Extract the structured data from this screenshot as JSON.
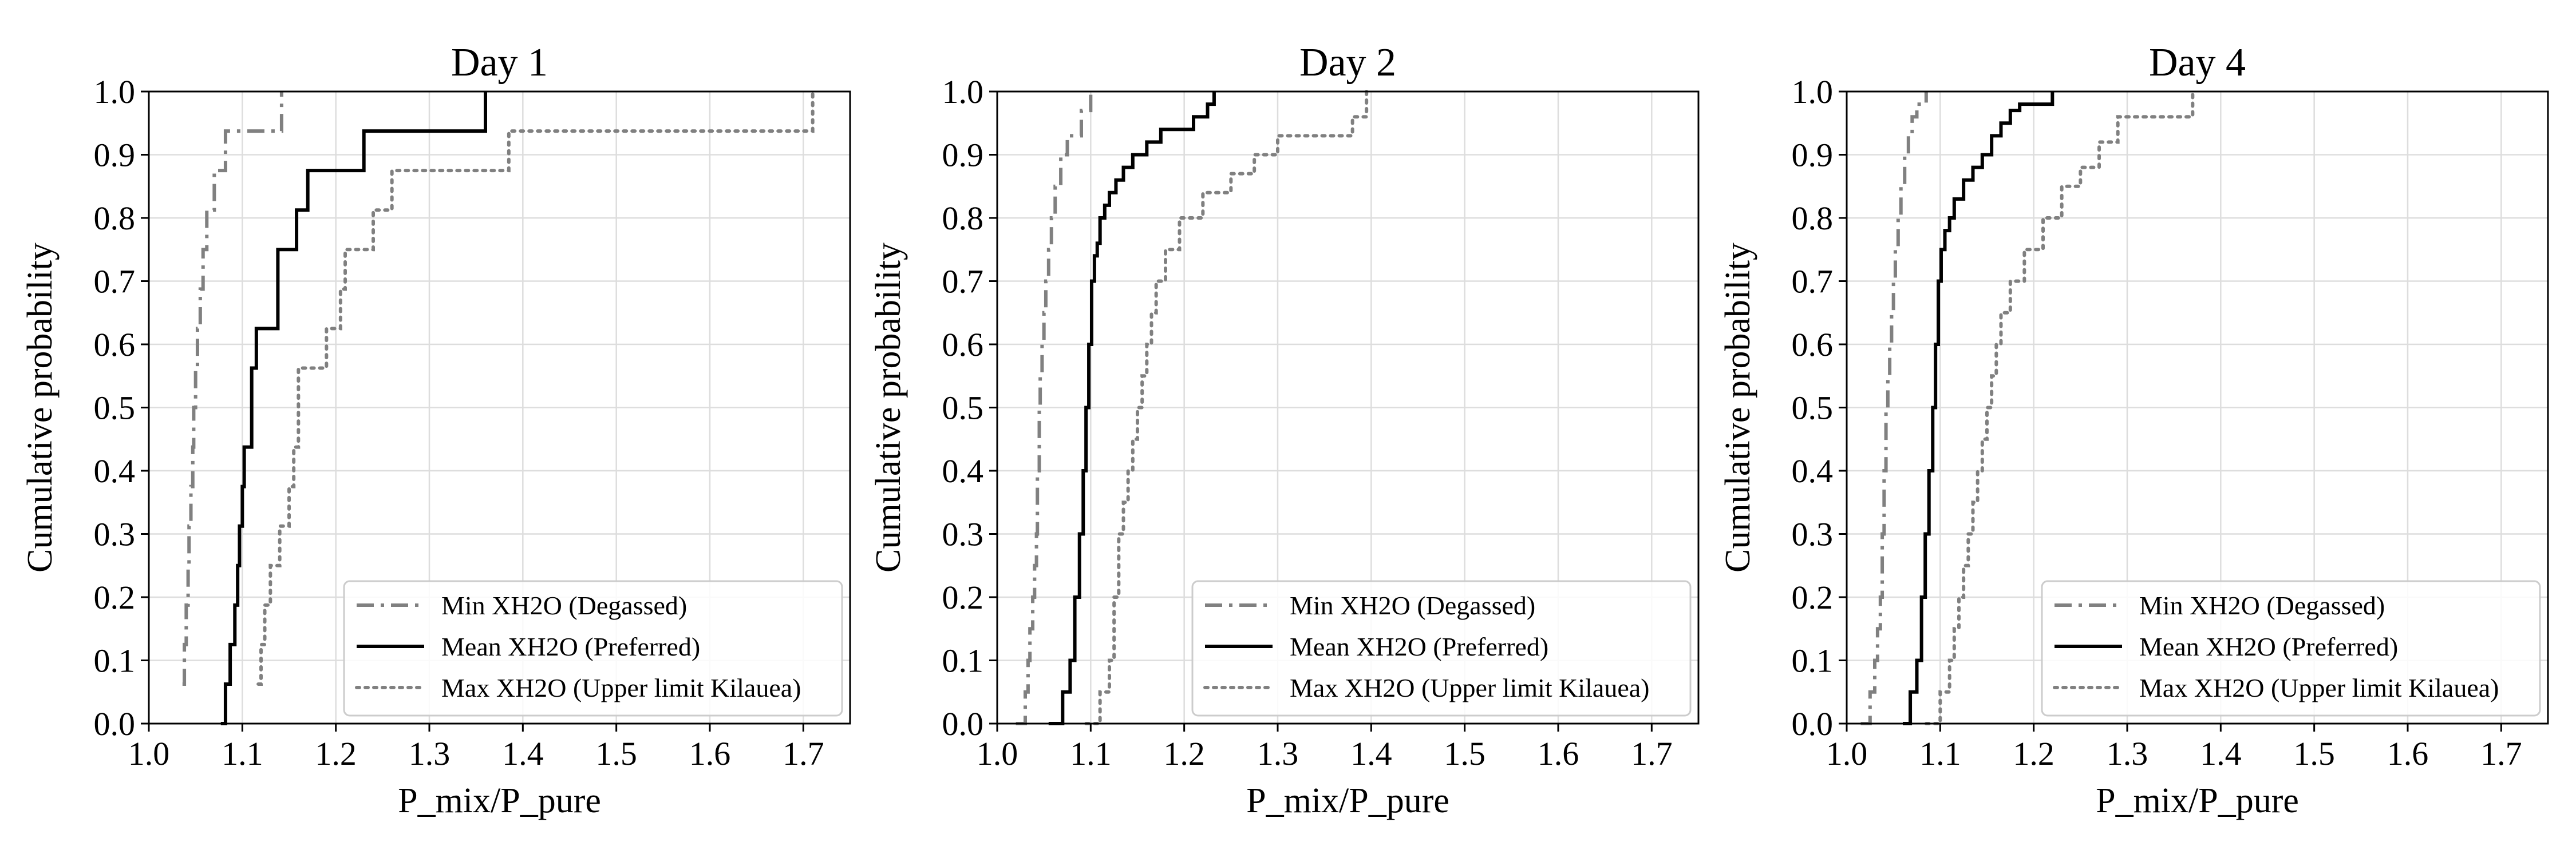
{
  "figure": {
    "shared_xlabel": "P_mix/P_pure",
    "shared_ylabel": "Cumulative probability"
  },
  "colors": {
    "min_series": "#808080",
    "mean_series": "#000000",
    "max_series": "#808080",
    "grid": "#dddddd",
    "axes": "#000000"
  },
  "chart_data": [
    {
      "type": "line",
      "subtype": "empirical-cdf-step",
      "title": "Day 1",
      "xlabel": "P_mix/P_pure",
      "ylabel": "Cumulative probability",
      "xlim": [
        1.0,
        1.75
      ],
      "ylim": [
        0.0,
        1.0
      ],
      "xticks": [
        "1.0",
        "1.1",
        "1.2",
        "1.3",
        "1.4",
        "1.5",
        "1.6",
        "1.7"
      ],
      "yticks": [
        "0.0",
        "0.1",
        "0.2",
        "0.3",
        "0.4",
        "0.5",
        "0.6",
        "0.7",
        "0.8",
        "0.9",
        "1.0"
      ],
      "grid": true,
      "legend_position": "lower-right",
      "series": [
        {
          "name": "Min XH2O (Degassed)",
          "style": "dashdot",
          "x": [
            1.036,
            1.038,
            1.04,
            1.042,
            1.043,
            1.045,
            1.047,
            1.048,
            1.05,
            1.052,
            1.055,
            1.058,
            1.062,
            1.07,
            1.082,
            1.142
          ],
          "y": [
            0.0625,
            0.125,
            0.1875,
            0.25,
            0.3125,
            0.375,
            0.4375,
            0.5,
            0.5625,
            0.625,
            0.6875,
            0.75,
            0.8125,
            0.875,
            0.9375,
            1.0
          ]
        },
        {
          "name": "Mean XH2O (Preferred)",
          "style": "solid",
          "x": [
            1.077,
            1.082,
            1.087,
            1.092,
            1.095,
            1.097,
            1.1,
            1.102,
            1.11,
            1.115,
            1.125,
            1.138,
            1.158,
            1.17,
            1.19,
            1.23,
            1.36
          ],
          "y": [
            0.0,
            0.0625,
            0.125,
            0.1875,
            0.25,
            0.3125,
            0.375,
            0.4375,
            0.5625,
            0.625,
            0.625,
            0.75,
            0.8125,
            0.875,
            0.875,
            0.9375,
            1.0
          ]
        },
        {
          "name": "Max XH2O (Upper limit Kilauea)",
          "style": "dotted",
          "x": [
            1.117,
            1.12,
            1.124,
            1.13,
            1.14,
            1.15,
            1.155,
            1.16,
            1.17,
            1.19,
            1.205,
            1.21,
            1.24,
            1.26,
            1.385,
            1.71
          ],
          "y": [
            0.0625,
            0.125,
            0.1875,
            0.25,
            0.3125,
            0.375,
            0.4375,
            0.5625,
            0.5625,
            0.625,
            0.6875,
            0.75,
            0.8125,
            0.875,
            0.9375,
            1.0
          ]
        }
      ]
    },
    {
      "type": "line",
      "subtype": "empirical-cdf-step",
      "title": "Day 2",
      "xlabel": "P_mix/P_pure",
      "ylabel": "Cumulative probability",
      "xlim": [
        1.0,
        1.75
      ],
      "ylim": [
        0.0,
        1.0
      ],
      "xticks": [
        "1.0",
        "1.1",
        "1.2",
        "1.3",
        "1.4",
        "1.5",
        "1.6",
        "1.7"
      ],
      "yticks": [
        "0.0",
        "0.1",
        "0.2",
        "0.3",
        "0.4",
        "0.5",
        "0.6",
        "0.7",
        "0.8",
        "0.9",
        "1.0"
      ],
      "grid": true,
      "legend_position": "lower-right",
      "series": [
        {
          "name": "Min XH2O (Degassed)",
          "style": "dashdot",
          "x": [
            1.02,
            1.03,
            1.033,
            1.035,
            1.038,
            1.04,
            1.042,
            1.043,
            1.045,
            1.046,
            1.048,
            1.05,
            1.052,
            1.055,
            1.058,
            1.062,
            1.068,
            1.075,
            1.09,
            1.1
          ],
          "y": [
            0.0,
            0.05,
            0.1,
            0.15,
            0.2,
            0.25,
            0.3,
            0.4,
            0.5,
            0.55,
            0.6,
            0.65,
            0.7,
            0.75,
            0.8,
            0.85,
            0.9,
            0.93,
            0.97,
            1.0
          ]
        },
        {
          "name": "Mean XH2O (Preferred)",
          "style": "solid",
          "x": [
            1.055,
            1.07,
            1.078,
            1.083,
            1.088,
            1.092,
            1.095,
            1.098,
            1.101,
            1.104,
            1.107,
            1.11,
            1.115,
            1.12,
            1.127,
            1.135,
            1.145,
            1.16,
            1.175,
            1.21,
            1.225,
            1.232
          ],
          "y": [
            0.0,
            0.05,
            0.1,
            0.2,
            0.3,
            0.4,
            0.5,
            0.6,
            0.7,
            0.74,
            0.76,
            0.8,
            0.82,
            0.84,
            0.86,
            0.88,
            0.9,
            0.92,
            0.94,
            0.96,
            0.98,
            1.0
          ]
        },
        {
          "name": "Max XH2O (Upper limit Kilauea)",
          "style": "dotted",
          "x": [
            1.095,
            1.11,
            1.12,
            1.125,
            1.13,
            1.135,
            1.14,
            1.145,
            1.15,
            1.155,
            1.16,
            1.165,
            1.17,
            1.18,
            1.195,
            1.22,
            1.25,
            1.275,
            1.3,
            1.38,
            1.395
          ],
          "y": [
            0.0,
            0.05,
            0.1,
            0.2,
            0.3,
            0.35,
            0.4,
            0.45,
            0.5,
            0.55,
            0.6,
            0.65,
            0.7,
            0.75,
            0.8,
            0.84,
            0.87,
            0.9,
            0.93,
            0.96,
            1.0
          ]
        }
      ]
    },
    {
      "type": "line",
      "subtype": "empirical-cdf-step",
      "title": "Day 4",
      "xlabel": "P_mix/P_pure",
      "ylabel": "Cumulative probability",
      "xlim": [
        1.0,
        1.75
      ],
      "ylim": [
        0.0,
        1.0
      ],
      "xticks": [
        "1.0",
        "1.1",
        "1.2",
        "1.3",
        "1.4",
        "1.5",
        "1.6",
        "1.7"
      ],
      "yticks": [
        "0.0",
        "0.1",
        "0.2",
        "0.3",
        "0.4",
        "0.5",
        "0.6",
        "0.7",
        "0.8",
        "0.9",
        "1.0"
      ],
      "grid": true,
      "legend_position": "lower-right",
      "series": [
        {
          "name": "Min XH2O (Degassed)",
          "style": "dashdot",
          "x": [
            1.015,
            1.025,
            1.03,
            1.033,
            1.036,
            1.038,
            1.04,
            1.042,
            1.044,
            1.046,
            1.048,
            1.05,
            1.052,
            1.055,
            1.058,
            1.062,
            1.066,
            1.07,
            1.075,
            1.085
          ],
          "y": [
            0.0,
            0.05,
            0.1,
            0.15,
            0.2,
            0.3,
            0.4,
            0.5,
            0.55,
            0.6,
            0.65,
            0.7,
            0.75,
            0.8,
            0.85,
            0.9,
            0.93,
            0.96,
            0.98,
            1.0
          ]
        },
        {
          "name": "Mean XH2O (Preferred)",
          "style": "solid",
          "x": [
            1.06,
            1.068,
            1.075,
            1.08,
            1.084,
            1.088,
            1.092,
            1.095,
            1.098,
            1.101,
            1.105,
            1.11,
            1.115,
            1.125,
            1.135,
            1.145,
            1.155,
            1.165,
            1.175,
            1.185,
            1.22
          ],
          "y": [
            0.0,
            0.05,
            0.1,
            0.2,
            0.3,
            0.4,
            0.5,
            0.6,
            0.7,
            0.75,
            0.78,
            0.8,
            0.83,
            0.86,
            0.88,
            0.9,
            0.93,
            0.95,
            0.97,
            0.98,
            1.0
          ]
        },
        {
          "name": "Max XH2O (Upper limit Kilauea)",
          "style": "dotted",
          "x": [
            1.085,
            1.1,
            1.11,
            1.115,
            1.12,
            1.125,
            1.13,
            1.135,
            1.14,
            1.145,
            1.15,
            1.155,
            1.16,
            1.165,
            1.175,
            1.19,
            1.21,
            1.23,
            1.25,
            1.27,
            1.29,
            1.37
          ],
          "y": [
            0.0,
            0.05,
            0.1,
            0.15,
            0.2,
            0.25,
            0.3,
            0.35,
            0.4,
            0.45,
            0.5,
            0.55,
            0.6,
            0.65,
            0.7,
            0.75,
            0.8,
            0.85,
            0.88,
            0.92,
            0.96,
            1.0
          ]
        }
      ]
    }
  ]
}
